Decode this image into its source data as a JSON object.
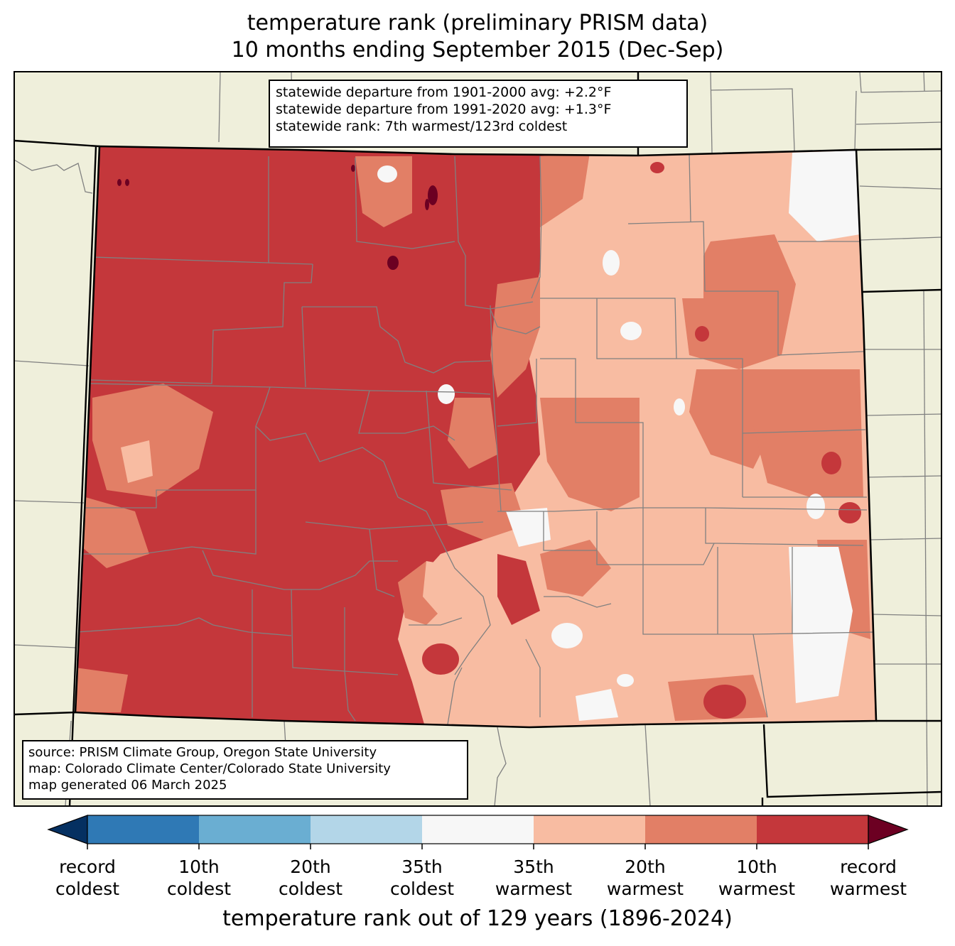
{
  "title": {
    "line1": "temperature rank (preliminary PRISM data)",
    "line2": "10 months ending September 2015 (Dec-Sep)"
  },
  "stats": {
    "line1": "statewide departure from 1901-2000 avg: +2.2°F",
    "line2": "statewide departure from 1991-2020 avg: +1.3°F",
    "line3": "statewide rank: 7th warmest/123rd coldest"
  },
  "source": {
    "line1": "source: PRISM Climate Group, Oregon State University",
    "line2": "map: Colorado Climate Center/Colorado State University",
    "line3": "map generated 06 March 2025"
  },
  "colorbar": {
    "label": "temperature rank out of 129 years (1896-2024)",
    "ticks": [
      {
        "line1": "record",
        "line2": "coldest"
      },
      {
        "line1": "10th",
        "line2": "coldest"
      },
      {
        "line1": "20th",
        "line2": "coldest"
      },
      {
        "line1": "35th",
        "line2": "coldest"
      },
      {
        "line1": "35th",
        "line2": "warmest"
      },
      {
        "line1": "20th",
        "line2": "warmest"
      },
      {
        "line1": "10th",
        "line2": "warmest"
      },
      {
        "line1": "record",
        "line2": "warmest"
      }
    ],
    "colors": {
      "record_coldest": "#053061",
      "coldest_10": "#2f79b5",
      "coldest_20": "#6aaed2",
      "coldest_35": "#b3d6e8",
      "near_normal": "#f7f7f7",
      "warmest_35": "#f8bca2",
      "warmest_20": "#e27f66",
      "warmest_10": "#c4373b",
      "record_warmest": "#6c0022"
    }
  },
  "colors": {
    "land": "#efefdb",
    "county_lines": "#808080",
    "state_lines": "#000000"
  }
}
